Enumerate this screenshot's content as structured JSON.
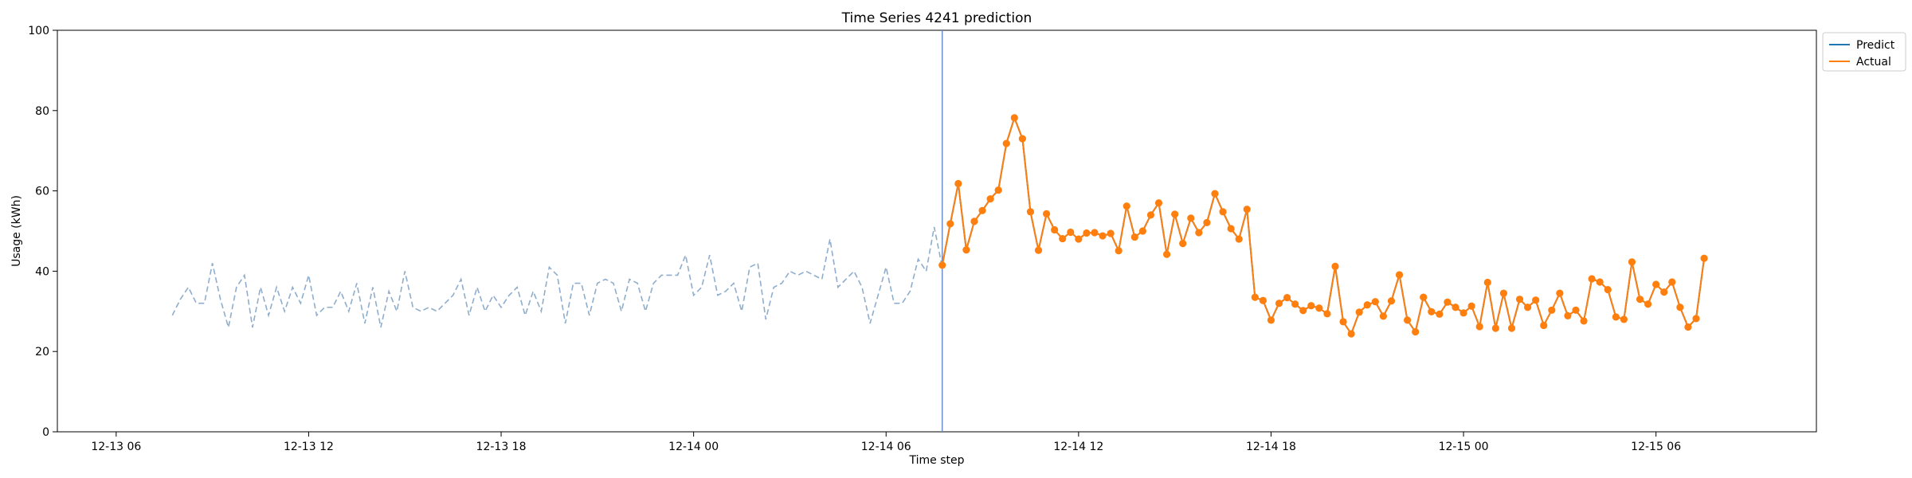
{
  "chart_data": {
    "type": "line",
    "title": "Time Series 4241 prediction",
    "xlabel": "Time step",
    "ylabel": "Usage (kWh)",
    "ylim": [
      0,
      100
    ],
    "yticks": [
      0,
      20,
      40,
      60,
      80,
      100
    ],
    "xlim": [
      "2012-12-13 04:10",
      "2012-12-15 11:00"
    ],
    "xticks": [
      {
        "t": "2012-12-13 06:00",
        "label": "12-13 06"
      },
      {
        "t": "2012-12-13 12:00",
        "label": "12-13 12"
      },
      {
        "t": "2012-12-13 18:00",
        "label": "12-13 18"
      },
      {
        "t": "2012-12-14 00:00",
        "label": "12-14 00"
      },
      {
        "t": "2012-12-14 06:00",
        "label": "12-14 06"
      },
      {
        "t": "2012-12-14 12:00",
        "label": "12-14 12"
      },
      {
        "t": "2012-12-14 18:00",
        "label": "12-14 18"
      },
      {
        "t": "2012-12-15 00:00",
        "label": "12-15 00"
      },
      {
        "t": "2012-12-15 06:00",
        "label": "12-15 06"
      }
    ],
    "step_minutes": 15,
    "history": {
      "start": "2012-12-13 07:45",
      "style": "dashed",
      "color": "#8fadcc",
      "values": [
        29,
        33,
        36,
        32,
        32,
        42,
        33,
        26,
        36,
        39,
        26,
        36,
        29,
        36,
        30,
        36,
        32,
        39,
        29,
        31,
        31,
        35,
        30,
        37,
        27,
        36,
        26,
        35,
        30,
        40,
        31,
        30,
        31,
        30,
        32,
        34,
        38,
        29,
        36,
        30,
        34,
        31,
        34,
        36,
        29,
        35,
        30,
        41,
        39,
        27,
        37,
        37,
        29,
        37,
        38,
        37,
        30,
        38,
        37,
        30,
        37,
        39,
        39,
        39,
        44,
        34,
        36,
        44,
        34,
        35,
        37,
        30,
        41,
        42,
        28,
        36,
        37,
        40,
        39,
        40,
        39,
        38,
        48,
        36,
        38,
        40,
        36,
        27,
        34,
        41,
        32,
        32,
        35,
        43,
        40,
        51,
        41
      ]
    },
    "series": [
      {
        "name": "Predict",
        "color": "#1f77b4",
        "start": "2012-12-14 07:45",
        "values": [
          41.5,
          51.8,
          61.8,
          45.3,
          52.4,
          55.1,
          58.0,
          60.2,
          71.8,
          78.2,
          73.0,
          54.8,
          45.2,
          54.3,
          50.3,
          48.1,
          49.7,
          48.0,
          49.5,
          49.6,
          48.8,
          49.4,
          45.1,
          56.2,
          48.5,
          50.0,
          54.0,
          57.0,
          44.2,
          54.2,
          46.9,
          53.2,
          49.6,
          52.1,
          59.3,
          54.8,
          50.6,
          48.0,
          55.4,
          33.5,
          32.7,
          27.8,
          32.0,
          33.4,
          31.8,
          30.2,
          31.4,
          30.8,
          29.4,
          41.2,
          27.4,
          24.4,
          29.8,
          31.6,
          32.4,
          28.8,
          32.6,
          39.1,
          27.8,
          24.9,
          33.5,
          29.9,
          29.3,
          32.3,
          31.0,
          29.6,
          31.3,
          26.2,
          37.2,
          25.8,
          34.5,
          25.8,
          33.0,
          31.0,
          32.8,
          26.5,
          30.3,
          34.5,
          28.9,
          30.3,
          27.6,
          38.1,
          37.3,
          35.4,
          28.6,
          28.0,
          42.3,
          33.0,
          31.8,
          36.7,
          34.8,
          37.3,
          31.0,
          26.1,
          28.2,
          43.2
        ]
      },
      {
        "name": "Actual",
        "color": "#ff7f0e",
        "marker": "circle",
        "start": "2012-12-14 07:45",
        "values": [
          41.5,
          51.8,
          61.8,
          45.3,
          52.4,
          55.1,
          58.0,
          60.2,
          71.8,
          78.2,
          73.0,
          54.8,
          45.2,
          54.3,
          50.3,
          48.1,
          49.7,
          48.0,
          49.5,
          49.6,
          48.8,
          49.4,
          45.1,
          56.2,
          48.5,
          50.0,
          54.0,
          57.0,
          44.2,
          54.2,
          46.9,
          53.2,
          49.6,
          52.1,
          59.3,
          54.8,
          50.6,
          48.0,
          55.4,
          33.5,
          32.7,
          27.8,
          32.0,
          33.4,
          31.8,
          30.2,
          31.4,
          30.8,
          29.4,
          41.2,
          27.4,
          24.4,
          29.8,
          31.6,
          32.4,
          28.8,
          32.6,
          39.1,
          27.8,
          24.9,
          33.5,
          29.9,
          29.3,
          32.3,
          31.0,
          29.6,
          31.3,
          26.2,
          37.2,
          25.8,
          34.5,
          25.8,
          33.0,
          31.0,
          32.8,
          26.5,
          30.3,
          34.5,
          28.9,
          30.3,
          27.6,
          38.1,
          37.3,
          35.4,
          28.6,
          28.0,
          42.3,
          33.0,
          31.8,
          36.7,
          34.8,
          37.3,
          31.0,
          26.1,
          28.2,
          43.2
        ]
      }
    ],
    "split_line": {
      "t": "2012-12-14 07:45",
      "color": "#6d8fc6"
    },
    "legend": {
      "placement": "upper-right-outside",
      "entries": [
        "Predict",
        "Actual"
      ]
    },
    "grid": false
  }
}
